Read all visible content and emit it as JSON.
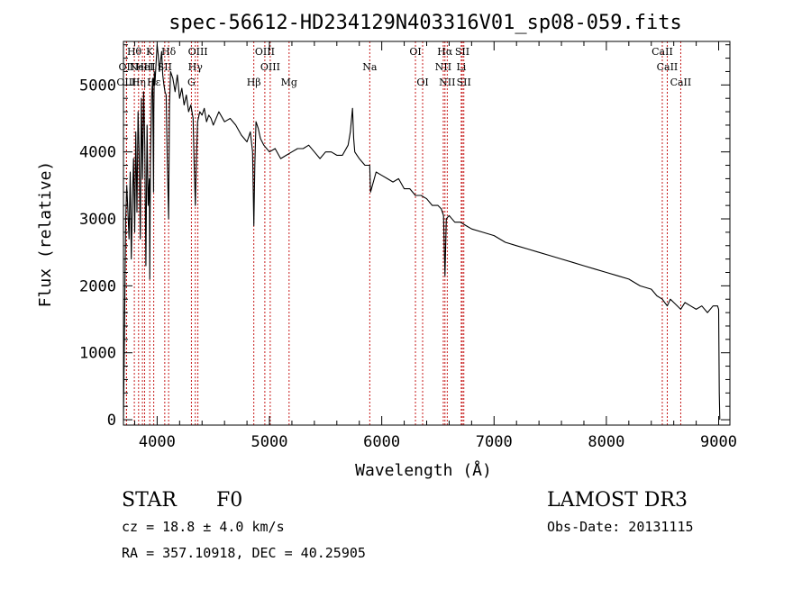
{
  "chart_data": {
    "type": "line",
    "title": "spec-56612-HD234129N403316V01_sp08-059.fits",
    "xlabel": "Wavelength (Å)",
    "ylabel": "Flux (relative)",
    "xlim": [
      3700,
      9100
    ],
    "ylim": [
      -80,
      5650
    ],
    "x_ticks": [
      4000,
      5000,
      6000,
      7000,
      8000,
      9000
    ],
    "x_tick_labels": [
      "4000",
      "5000",
      "6000",
      "7000",
      "8000",
      "9000"
    ],
    "y_ticks": [
      0,
      1000,
      2000,
      3000,
      4000,
      5000
    ],
    "y_tick_labels": [
      "0",
      "1000",
      "2000",
      "3000",
      "4000",
      "5000"
    ],
    "series": [
      {
        "name": "spectrum",
        "x": [
          3700,
          3710,
          3720,
          3730,
          3740,
          3750,
          3760,
          3770,
          3780,
          3790,
          3800,
          3810,
          3820,
          3830,
          3840,
          3850,
          3860,
          3870,
          3880,
          3890,
          3900,
          3910,
          3920,
          3930,
          3934,
          3940,
          3950,
          3960,
          3968,
          3970,
          3975,
          3980,
          3990,
          4000,
          4010,
          4020,
          4030,
          4040,
          4050,
          4060,
          4070,
          4080,
          4090,
          4102,
          4110,
          4120,
          4140,
          4160,
          4180,
          4200,
          4220,
          4240,
          4260,
          4280,
          4300,
          4320,
          4330,
          4340,
          4350,
          4360,
          4380,
          4400,
          4420,
          4440,
          4460,
          4480,
          4500,
          4550,
          4600,
          4650,
          4700,
          4750,
          4800,
          4830,
          4850,
          4861,
          4870,
          4880,
          4900,
          4920,
          4950,
          5000,
          5050,
          5100,
          5150,
          5200,
          5250,
          5300,
          5350,
          5400,
          5450,
          5500,
          5550,
          5600,
          5650,
          5700,
          5720,
          5740,
          5750,
          5760,
          5780,
          5800,
          5850,
          5893,
          5900,
          5950,
          6000,
          6050,
          6100,
          6150,
          6200,
          6250,
          6300,
          6350,
          6400,
          6450,
          6500,
          6530,
          6550,
          6563,
          6575,
          6600,
          6650,
          6700,
          6750,
          6800,
          6900,
          7000,
          7100,
          7200,
          7300,
          7400,
          7500,
          7600,
          7700,
          7800,
          7900,
          8000,
          8100,
          8200,
          8300,
          8400,
          8450,
          8498,
          8520,
          8542,
          8570,
          8600,
          8662,
          8700,
          8750,
          8800,
          8850,
          8900,
          8950,
          8990,
          9000,
          9005,
          9010
        ],
        "values": [
          0,
          1400,
          3000,
          3500,
          3100,
          2700,
          3700,
          2400,
          3300,
          3900,
          2800,
          4300,
          3100,
          4600,
          4000,
          2700,
          4800,
          3600,
          4900,
          4100,
          2300,
          4400,
          3200,
          3600,
          2100,
          3800,
          4800,
          5100,
          3400,
          4600,
          5200,
          5000,
          5300,
          5600,
          5450,
          5200,
          5350,
          5500,
          5150,
          5000,
          4900,
          4850,
          3900,
          3000,
          4700,
          5200,
          5100,
          4900,
          5150,
          4800,
          4950,
          4700,
          4850,
          4600,
          4700,
          4500,
          3800,
          3200,
          3900,
          4450,
          4600,
          4550,
          4650,
          4450,
          4550,
          4500,
          4400,
          4600,
          4450,
          4500,
          4400,
          4250,
          4150,
          4300,
          4000,
          2900,
          3800,
          4450,
          4350,
          4200,
          4100,
          4000,
          4050,
          3900,
          3950,
          4000,
          4050,
          4050,
          4100,
          4000,
          3900,
          4000,
          4000,
          3950,
          3950,
          4100,
          4300,
          4650,
          4200,
          4000,
          3950,
          3900,
          3800,
          3800,
          3400,
          3700,
          3650,
          3600,
          3550,
          3600,
          3450,
          3450,
          3350,
          3350,
          3300,
          3200,
          3200,
          3150,
          3050,
          2150,
          3000,
          3050,
          2950,
          2950,
          2900,
          2850,
          2800,
          2750,
          2650,
          2600,
          2550,
          2500,
          2450,
          2400,
          2350,
          2300,
          2250,
          2200,
          2150,
          2100,
          2000,
          1950,
          1850,
          1800,
          1750,
          1700,
          1800,
          1750,
          1650,
          1750,
          1700,
          1650,
          1700,
          1600,
          1700,
          1700,
          1650,
          400,
          0
        ]
      }
    ],
    "line_markers": [
      {
        "name": "Hθ",
        "x": 3797,
        "row": 1
      },
      {
        "name": "OII",
        "x": 3727,
        "row": 2
      },
      {
        "name": "OIII",
        "x": 3727,
        "row": 3
      },
      {
        "name": "K",
        "x": 3934,
        "row": 1
      },
      {
        "name": "HeI",
        "x": 3889,
        "row": 2
      },
      {
        "name": "Hη",
        "x": 3835,
        "row": 3
      },
      {
        "name": "Hδ",
        "x": 4102,
        "row": 1
      },
      {
        "name": "NeIII",
        "x": 3869,
        "row": 2
      },
      {
        "name": "SII",
        "x": 4068,
        "row": 2
      },
      {
        "name": "Hε",
        "x": 3970,
        "row": 3
      },
      {
        "name": "OIII",
        "x": 4363,
        "row": 1
      },
      {
        "name": "Hγ",
        "x": 4340,
        "row": 2
      },
      {
        "name": "G",
        "x": 4305,
        "row": 3
      },
      {
        "name": "OIII",
        "x": 4959,
        "row": 1
      },
      {
        "name": "OIII",
        "x": 5007,
        "row": 2
      },
      {
        "name": "Hβ",
        "x": 4861,
        "row": 3
      },
      {
        "name": "Mg",
        "x": 5175,
        "row": 3
      },
      {
        "name": "Na",
        "x": 5893,
        "row": 2
      },
      {
        "name": "OI",
        "x": 6300,
        "row": 1
      },
      {
        "name": "OI",
        "x": 6364,
        "row": 3
      },
      {
        "name": "Hα",
        "x": 6563,
        "row": 1
      },
      {
        "name": "SII",
        "x": 6717,
        "row": 1
      },
      {
        "name": "NII",
        "x": 6548,
        "row": 2
      },
      {
        "name": "Li",
        "x": 6708,
        "row": 2
      },
      {
        "name": "NII",
        "x": 6583,
        "row": 3
      },
      {
        "name": "SII",
        "x": 6731,
        "row": 3
      },
      {
        "name": "CaII",
        "x": 8498,
        "row": 1
      },
      {
        "name": "CaII",
        "x": 8542,
        "row": 2
      },
      {
        "name": "CaII",
        "x": 8662,
        "row": 3
      }
    ]
  },
  "info": {
    "object_class": "STAR",
    "subclass": "F0",
    "survey": "LAMOST DR3",
    "cz": "cz = 18.8 ± 4.0 km/s",
    "obs_date": "Obs-Date: 20131115",
    "coords": "RA = 357.10918, DEC =  40.25905"
  },
  "colors": {
    "spectrum": "#000000",
    "marker_line": "#c00000",
    "axes": "#000000"
  }
}
